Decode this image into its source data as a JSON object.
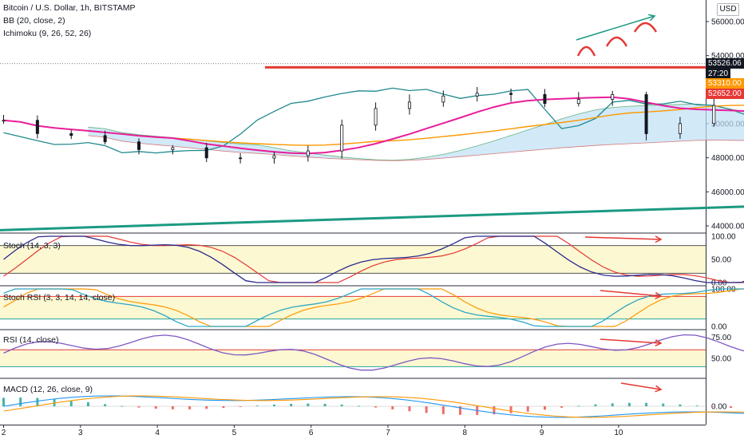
{
  "header": {
    "symbol_line": "Bitcoin / U.S. Dollar, 1h, BITSTAMP",
    "indicator_bb": "BB (20, close, 2)",
    "indicator_ichimoku": "Ichimoku (9, 26, 52, 26)",
    "currency_button": "USD"
  },
  "price_tags": {
    "last_price": "53526.06",
    "countdown": "27:20",
    "level_orange": "53310.00",
    "level_red": "52652.00"
  },
  "colors": {
    "up": "#26a69a",
    "down": "#ef5350",
    "candle": "#131722",
    "bb_mid": "#e91e9a",
    "kijun": "#ff9800",
    "chikou": "#21898f",
    "trend": "#1b9a82",
    "resistance": "#e53935",
    "stoch_k": "#2b2b8c",
    "stoch_d": "#e53935",
    "rsi_line": "#7e57c2",
    "band_fill": "#fcf8d2"
  },
  "chart_data": [
    {
      "type": "candlestick",
      "title": "Bitcoin / U.S. Dollar, 1h, BITSTAMP",
      "x_ticks": [
        "2",
        "3",
        "4",
        "5",
        "6",
        "7",
        "8",
        "9",
        "10"
      ],
      "ylim": [
        43500,
        56800
      ],
      "y_ticks": [
        "56000.00",
        "54000.00",
        "52000.00",
        "50000.00",
        "48000.00",
        "46000.00",
        "44000.00"
      ],
      "overlays": [
        "BB (20, close, 2)",
        "Ichimoku (9, 26, 52, 26)"
      ],
      "close_path": [
        [
          0,
          50200
        ],
        [
          0.5,
          49300
        ],
        [
          1,
          49200
        ],
        [
          1.4,
          48700
        ],
        [
          1.9,
          48600
        ],
        [
          2.3,
          48600
        ],
        [
          2.7,
          48100
        ],
        [
          3.2,
          48000
        ],
        [
          3.6,
          47900
        ],
        [
          4,
          48300
        ],
        [
          4.3,
          49500
        ],
        [
          4.7,
          50500
        ],
        [
          5.2,
          51400
        ],
        [
          5.6,
          51700
        ],
        [
          5.9,
          51800
        ],
        [
          6.2,
          52000
        ],
        [
          6.6,
          51500
        ],
        [
          7,
          51100
        ],
        [
          7.5,
          51400
        ],
        [
          7.9,
          51600
        ],
        [
          8.3,
          49500
        ],
        [
          8.7,
          49700
        ],
        [
          9.1,
          51300
        ],
        [
          9.5,
          51000
        ],
        [
          10,
          50800
        ],
        [
          10.5,
          50600
        ],
        [
          11,
          49800
        ],
        [
          11.6,
          49300
        ],
        [
          12.2,
          48600
        ],
        [
          13,
          48700
        ],
        [
          13.6,
          47300
        ],
        [
          14.3,
          46900
        ],
        [
          15,
          47100
        ],
        [
          15.7,
          47300
        ],
        [
          16.4,
          46900
        ],
        [
          17,
          47600
        ],
        [
          17.7,
          47400
        ],
        [
          18.4,
          48000
        ],
        [
          18.9,
          48400
        ],
        [
          19.4,
          48700
        ],
        [
          19.9,
          49500
        ],
        [
          20.5,
          49300
        ],
        [
          21,
          49100
        ],
        [
          21.5,
          48800
        ],
        [
          22,
          48400
        ],
        [
          22.4,
          48500
        ],
        [
          22.9,
          48100
        ],
        [
          23.3,
          47700
        ],
        [
          23.7,
          47900
        ],
        [
          24.3,
          48100
        ],
        [
          24.9,
          48700
        ],
        [
          25.5,
          49300
        ],
        [
          26.1,
          49600
        ],
        [
          26.6,
          49900
        ],
        [
          27.2,
          50300
        ],
        [
          27.8,
          50800
        ],
        [
          28.4,
          51100
        ],
        [
          29.1,
          51300
        ],
        [
          29.8,
          51000
        ],
        [
          30.3,
          51300
        ],
        [
          30.9,
          51600
        ],
        [
          31.5,
          51500
        ],
        [
          32,
          51000
        ],
        [
          32.5,
          50800
        ],
        [
          33,
          50700
        ],
        [
          33.5,
          50500
        ],
        [
          34,
          50300
        ],
        [
          34.6,
          50100
        ],
        [
          35.1,
          50300
        ],
        [
          35.6,
          50600
        ],
        [
          36.1,
          50800
        ],
        [
          36.6,
          51000
        ],
        [
          37.1,
          51500
        ],
        [
          37.6,
          52300
        ],
        [
          37.9,
          53200
        ],
        [
          38.2,
          54100
        ],
        [
          38.6,
          53700
        ],
        [
          39,
          53800
        ],
        [
          39.4,
          53600
        ],
        [
          39.9,
          53900
        ],
        [
          40.4,
          53700
        ],
        [
          40.8,
          53900
        ],
        [
          41.2,
          54100
        ],
        [
          41.6,
          54300
        ],
        [
          42,
          54100
        ],
        [
          42.2,
          55100
        ],
        [
          42.4,
          55800
        ],
        [
          42.6,
          55200
        ],
        [
          42.8,
          53900
        ],
        [
          43,
          53700
        ],
        [
          43.2,
          53500
        ]
      ],
      "support_trendline": {
        "start": [
          -0.4,
          43700
        ],
        "end": [
          45.2,
          50200
        ]
      },
      "rising_trendline": {
        "start": [
          33.7,
          48900
        ],
        "end": [
          43.2,
          55300
        ]
      },
      "resistance_level": {
        "value": 53310,
        "start_day": 3.4
      },
      "note": "x in days since the left edge of the plot; day label 2 at 0.35"
    },
    {
      "type": "line",
      "title": "Stoch (14, 3, 3)",
      "y_ticks": [
        "100.00",
        "50.00",
        "0.00"
      ],
      "ylim": [
        0,
        100
      ],
      "band": [
        20,
        80
      ],
      "series": [
        {
          "name": "%K"
        },
        {
          "name": "%D"
        }
      ]
    },
    {
      "type": "line",
      "title": "Stoch RSI (3, 3, 14, 14, close)",
      "y_ticks": [
        "100.00",
        "0.00"
      ],
      "ylim": [
        0,
        100
      ],
      "band": [
        20,
        80
      ],
      "series": [
        {
          "name": "K"
        },
        {
          "name": "D"
        }
      ]
    },
    {
      "type": "line",
      "title": "RSI (14, close)",
      "y_ticks": [
        "75.00",
        "50.00"
      ],
      "ylim": [
        25,
        85
      ],
      "band": [
        40,
        60
      ],
      "series": [
        {
          "name": "RSI"
        }
      ]
    },
    {
      "type": "bar",
      "title": "MACD (12, 26, close, 9)",
      "y_ticks": [
        "0.00"
      ],
      "series": [
        {
          "name": "Histogram"
        },
        {
          "name": "MACD"
        },
        {
          "name": "Signal"
        }
      ]
    }
  ]
}
